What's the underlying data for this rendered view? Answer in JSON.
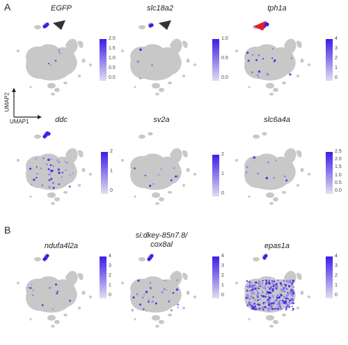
{
  "panel_labels": {
    "a": "A",
    "b": "B"
  },
  "axes": {
    "x_label": "UMAP1",
    "y_label": "UMAP2"
  },
  "colors": {
    "baseline": "#c8c8c8",
    "low": "#e2def0",
    "high": "#3a1ee8",
    "arrow_dark": "#333333",
    "arrow_red": "#e0202a"
  },
  "plots": [
    {
      "gene": "EGFP",
      "ticks": [
        "2.0",
        "1.5",
        "1.0",
        "0.5",
        "0.0"
      ],
      "arrow": "dark"
    },
    {
      "gene": "slc18a2",
      "ticks": [
        "1.0",
        "0.5",
        "0.0"
      ],
      "arrow": "dark"
    },
    {
      "gene": "tph1a",
      "ticks": [
        "4",
        "3",
        "2",
        "1",
        "0"
      ],
      "arrow": "red"
    },
    {
      "gene": "ddc",
      "ticks": [
        "2",
        "1",
        "0"
      ],
      "arrow": ""
    },
    {
      "gene": "sv2a",
      "ticks": [
        "2",
        "1",
        "0"
      ],
      "arrow": ""
    },
    {
      "gene": "slc6a4a",
      "ticks": [
        "2.5",
        "2.0",
        "1.5",
        "1.0",
        "0.5",
        "0.0"
      ],
      "arrow": ""
    },
    {
      "gene": "ndufa4l2a",
      "ticks": [
        "4",
        "3",
        "2",
        "1",
        "0"
      ],
      "arrow": ""
    },
    {
      "gene_line1": "si:dkey-85n7.8/",
      "gene": "cox8al",
      "ticks": [
        "4",
        "3",
        "2",
        "1",
        "0"
      ],
      "arrow": ""
    },
    {
      "gene": "epas1a",
      "ticks": [
        "4",
        "3",
        "2",
        "1",
        "0"
      ],
      "arrow": ""
    }
  ]
}
